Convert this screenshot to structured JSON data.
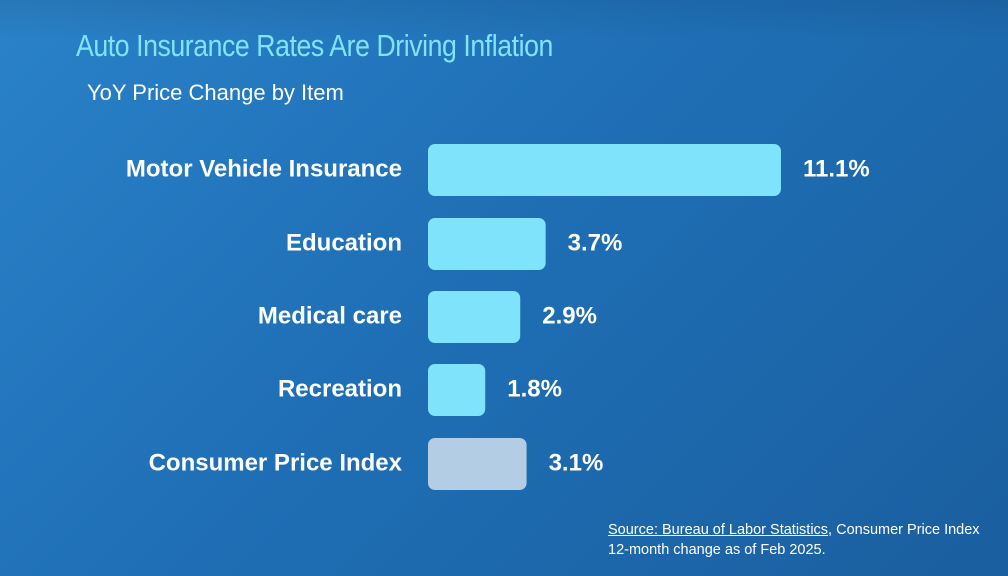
{
  "header": {
    "title": "Auto Insurance Rates Are Driving Inflation",
    "subtitle": "YoY Price Change by Item"
  },
  "chart_data": {
    "type": "bar",
    "orientation": "horizontal",
    "title": "Auto Insurance Rates Are Driving Inflation",
    "subtitle": "YoY Price Change by Item",
    "categories": [
      "Motor Vehicle Insurance",
      "Education",
      "Medical care",
      "Recreation",
      "Consumer Price Index"
    ],
    "values": [
      11.1,
      3.7,
      2.9,
      1.8,
      3.1
    ],
    "value_labels": [
      "11.1%",
      "3.7%",
      "2.9%",
      "1.8%",
      "3.1%"
    ],
    "unit": "%",
    "colors": [
      "#7fe3fb",
      "#7fe3fb",
      "#7fe3fb",
      "#7fe3fb",
      "#b3cde4"
    ],
    "grid": false,
    "legend": "none"
  },
  "footer": {
    "source_link": "Source: Bureau of Labor Statistics",
    "source_text": ", Consumer Price Index 12-month change as of Feb 2025."
  }
}
